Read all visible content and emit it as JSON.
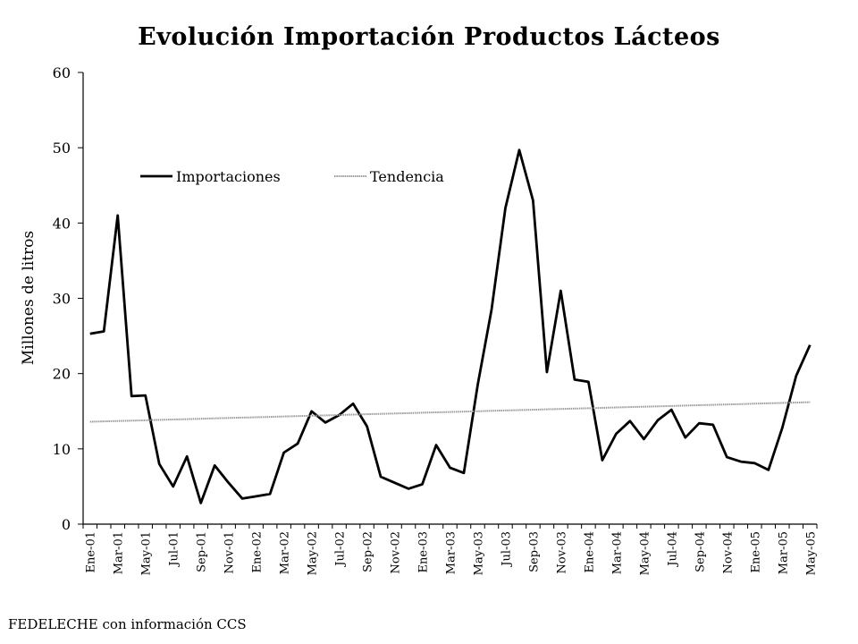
{
  "chart_data": {
    "type": "line",
    "title": "Evolución Importación Productos Lácteos",
    "ylabel": "Millones de litros",
    "xlabel": "",
    "ylim": [
      0,
      60
    ],
    "yticks": [
      0,
      10,
      20,
      30,
      40,
      50,
      60
    ],
    "grid": false,
    "legend_position": "top-left",
    "x": [
      "Ene-01",
      "Feb-01",
      "Mar-01",
      "Abr-01",
      "May-01",
      "Jun-01",
      "Jul-01",
      "Ago-01",
      "Sep-01",
      "Oct-01",
      "Nov-01",
      "Dic-01",
      "Ene-02",
      "Feb-02",
      "Mar-02",
      "Abr-02",
      "May-02",
      "Jun-02",
      "Jul-02",
      "Ago-02",
      "Sep-02",
      "Oct-02",
      "Nov-02",
      "Dic-02",
      "Ene-03",
      "Feb-03",
      "Mar-03",
      "Abr-03",
      "May-03",
      "Jun-03",
      "Jul-03",
      "Ago-03",
      "Sep-03",
      "Oct-03",
      "Nov-03",
      "Dic-03",
      "Ene-04",
      "Feb-04",
      "Mar-04",
      "Abr-04",
      "May-04",
      "Jun-04",
      "Jul-04",
      "Ago-04",
      "Sep-04",
      "Oct-04",
      "Nov-04",
      "Dic-04",
      "Ene-05",
      "Feb-05",
      "Mar-05",
      "Abr-05",
      "May-05"
    ],
    "xticks": [
      "Ene-01",
      "Mar-01",
      "May-01",
      "Jul-01",
      "Sep-01",
      "Nov-01",
      "Ene-02",
      "Mar-02",
      "May-02",
      "Jul-02",
      "Sep-02",
      "Nov-02",
      "Ene-03",
      "Mar-03",
      "May-03",
      "Jul-03",
      "Sep-03",
      "Nov-03",
      "Ene-04",
      "Mar-04",
      "May-04",
      "Jul-04",
      "Sep-04",
      "Nov-04",
      "Ene-05",
      "Mar-05",
      "May-05"
    ],
    "series": [
      {
        "name": "Importaciones",
        "color": "#000000",
        "style": "solid",
        "values": [
          25.3,
          25.6,
          41.0,
          17.0,
          17.1,
          8.0,
          5.0,
          9.0,
          2.8,
          7.8,
          5.5,
          3.4,
          3.7,
          4.0,
          9.5,
          10.7,
          15.0,
          13.5,
          14.5,
          16.0,
          13.0,
          6.3,
          5.5,
          4.7,
          5.3,
          10.5,
          7.5,
          6.8,
          18.5,
          28.5,
          42.0,
          49.7,
          43.0,
          20.2,
          31.0,
          19.2,
          18.9,
          8.5,
          12.0,
          13.7,
          11.3,
          13.8,
          15.2,
          11.5,
          13.4,
          13.2,
          8.9,
          8.3,
          8.1,
          7.2,
          12.8,
          19.7,
          23.8
        ]
      },
      {
        "name": "Tendencia",
        "color": "#999999",
        "style": "solid",
        "values": [
          13.6,
          13.65,
          13.7,
          13.75,
          13.8,
          13.85,
          13.9,
          13.95,
          14.0,
          14.05,
          14.1,
          14.15,
          14.2,
          14.25,
          14.3,
          14.35,
          14.4,
          14.45,
          14.5,
          14.55,
          14.6,
          14.65,
          14.7,
          14.75,
          14.8,
          14.85,
          14.9,
          14.95,
          15.0,
          15.05,
          15.1,
          15.15,
          15.2,
          15.25,
          15.3,
          15.35,
          15.4,
          15.45,
          15.5,
          15.55,
          15.6,
          15.65,
          15.7,
          15.75,
          15.8,
          15.85,
          15.9,
          15.95,
          16.0,
          16.05,
          16.1,
          16.15,
          16.2
        ]
      }
    ]
  },
  "source_note": "FEDELECHE con información CCS"
}
